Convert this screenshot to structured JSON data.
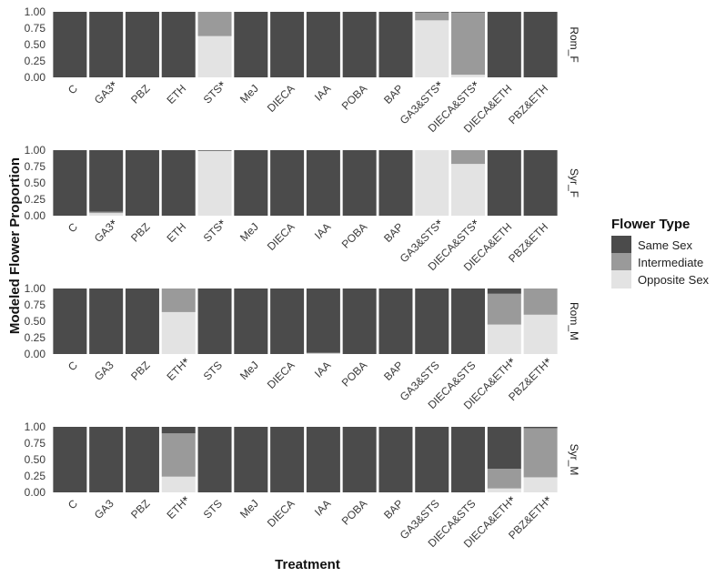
{
  "chart_data": {
    "type": "bar",
    "stacked": true,
    "xlabel": "Treatment",
    "ylabel": "Modeled Flower Proportion",
    "ylim": [
      0,
      1
    ],
    "yticks": [
      "0.00",
      "0.25",
      "0.50",
      "0.75",
      "1.00"
    ],
    "categories": [
      "C",
      "GA3",
      "PBZ",
      "ETH",
      "STS",
      "MeJ",
      "DIECA",
      "IAA",
      "POBA",
      "BAP",
      "GA3&STS",
      "DIECA&STS",
      "DIECA&ETH",
      "PBZ&ETH"
    ],
    "legend": {
      "title": "Flower Type",
      "position": "right",
      "entries": [
        {
          "label": "Same Sex",
          "color": "#4b4b4b"
        },
        {
          "label": "Intermediate",
          "color": "#9a9a9a"
        },
        {
          "label": "Opposite Sex",
          "color": "#e3e3e3"
        }
      ]
    },
    "panels": [
      {
        "label": "Rom_F",
        "significant": [
          "GA3",
          "STS",
          "GA3&STS",
          "DIECA&STS"
        ],
        "opposite": [
          0,
          0,
          0,
          0,
          0.63,
          0,
          0,
          0,
          0,
          0,
          0.87,
          0.04,
          0,
          0
        ],
        "intermediate": [
          0,
          0,
          0,
          0,
          0.37,
          0,
          0,
          0,
          0,
          0,
          0.12,
          0.95,
          0,
          0
        ]
      },
      {
        "label": "Syr_F",
        "significant": [
          "GA3",
          "STS",
          "GA3&STS",
          "DIECA&STS"
        ],
        "opposite": [
          0,
          0.04,
          0,
          0,
          0.99,
          0,
          0,
          0,
          0,
          0,
          1.0,
          0.79,
          0,
          0
        ],
        "intermediate": [
          0,
          0.02,
          0,
          0,
          0.0,
          0,
          0,
          0,
          0,
          0,
          0.0,
          0.21,
          0,
          0
        ]
      },
      {
        "label": "Rom_M",
        "significant": [
          "ETH",
          "DIECA&ETH",
          "PBZ&ETH"
        ],
        "opposite": [
          0,
          0,
          0,
          0.64,
          0,
          0,
          0,
          0.01,
          0,
          0,
          0,
          0,
          0.45,
          0.6
        ],
        "intermediate": [
          0,
          0,
          0,
          0.36,
          0,
          0,
          0,
          0.01,
          0,
          0,
          0,
          0,
          0.47,
          0.4
        ]
      },
      {
        "label": "Syr_M",
        "significant": [
          "ETH",
          "DIECA&ETH",
          "PBZ&ETH"
        ],
        "opposite": [
          0,
          0,
          0,
          0.24,
          0,
          0,
          0,
          0,
          0,
          0,
          0,
          0,
          0.06,
          0.23
        ],
        "intermediate": [
          0,
          0,
          0,
          0.66,
          0,
          0,
          0,
          0,
          0,
          0,
          0,
          0,
          0.3,
          0.75
        ]
      }
    ]
  }
}
